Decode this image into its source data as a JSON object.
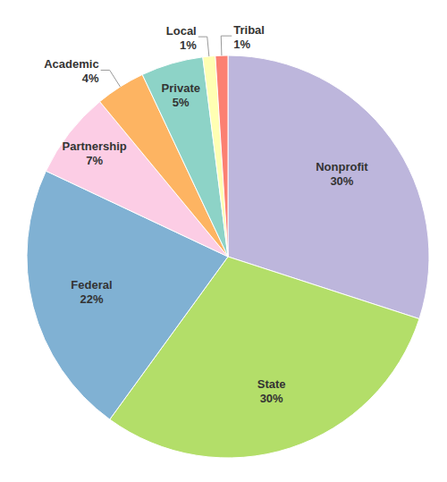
{
  "chart_data": {
    "type": "pie",
    "categories": [
      "Nonprofit",
      "State",
      "Federal",
      "Partnership",
      "Academic",
      "Private",
      "Local",
      "Tribal"
    ],
    "values": [
      30,
      30,
      22,
      7,
      4,
      5,
      1,
      1
    ],
    "value_labels": [
      "30%",
      "30%",
      "22%",
      "7%",
      "4%",
      "5%",
      "1%",
      "1%"
    ],
    "colors": [
      "#bdb6dc",
      "#b3de69",
      "#80b1d3",
      "#fccde5",
      "#fdb462",
      "#8dd3c7",
      "#ffffb3",
      "#fb8072"
    ],
    "data_labels": true
  }
}
